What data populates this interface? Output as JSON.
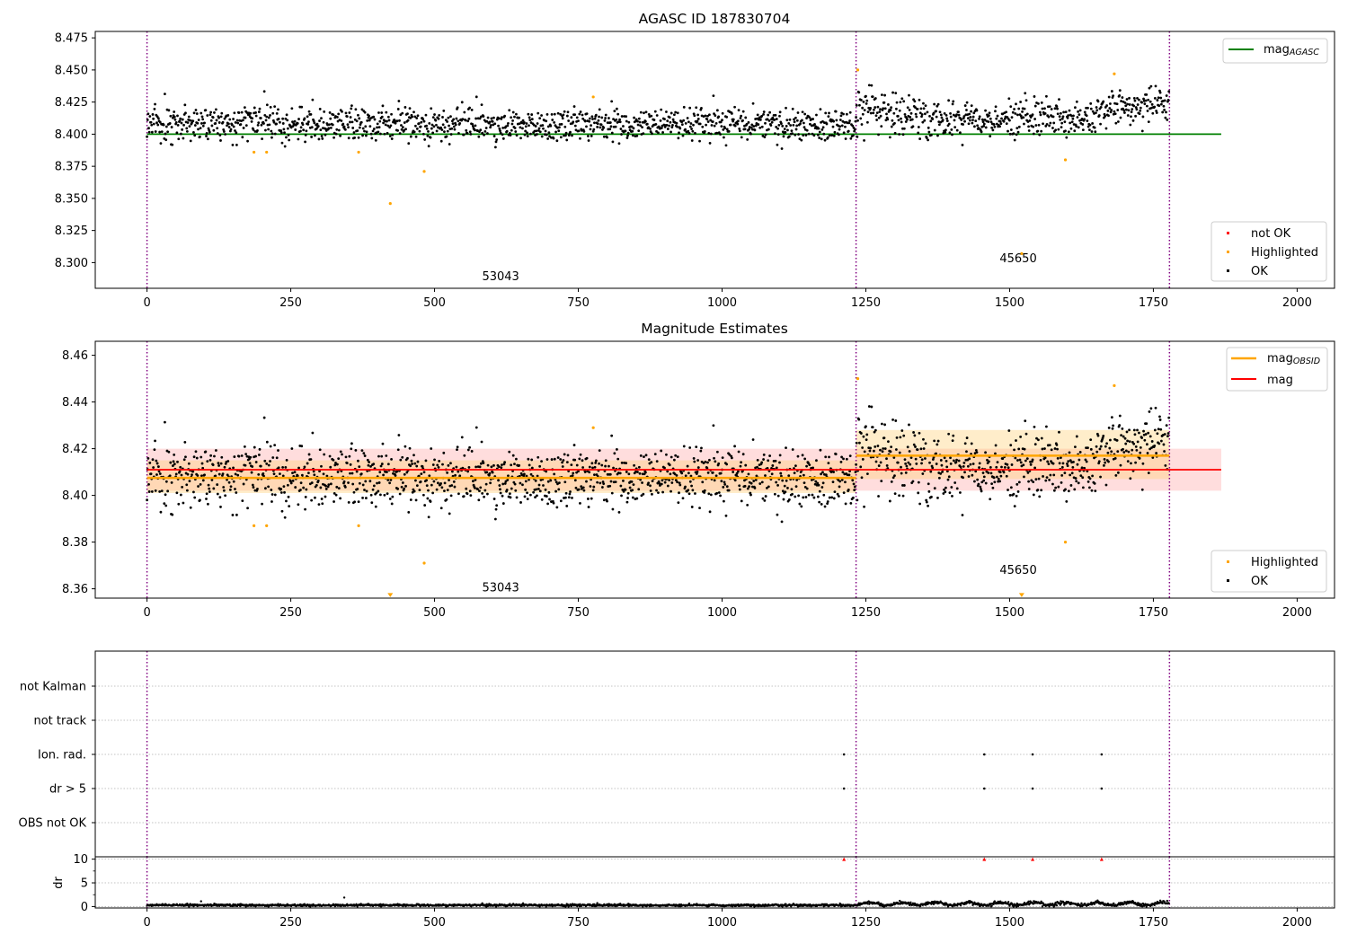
{
  "chart_data": [
    {
      "type": "scatter",
      "title": "AGASC ID 187830704",
      "xlabel": "",
      "ylabel": "",
      "xlim": [
        -90,
        2065
      ],
      "ylim": [
        8.28,
        8.48
      ],
      "xticks": [
        0,
        250,
        500,
        750,
        1000,
        1250,
        1500,
        1750,
        2000
      ],
      "yticks": [
        8.3,
        8.325,
        8.35,
        8.375,
        8.4,
        8.425,
        8.45,
        8.475
      ],
      "ytick_labels": [
        "8.300",
        "8.325",
        "8.350",
        "8.375",
        "8.400",
        "8.425",
        "8.450",
        "8.475"
      ],
      "obs_boundaries": [
        0,
        1233,
        1778
      ],
      "obs_labels": [
        {
          "text": "53043",
          "x": 615,
          "y": 8.289
        },
        {
          "text": "45650",
          "x": 1515,
          "y": 8.303
        }
      ],
      "reference_line": {
        "name": "mag_AGASC",
        "y": 8.4,
        "x": [
          0,
          1868
        ]
      },
      "obs_segments": [
        {
          "x_start": 0,
          "x_end": 1233,
          "mean": 8.408,
          "sd": 0.007
        },
        {
          "x_start": 1233,
          "x_end": 1778,
          "mean": 8.416,
          "sd": 0.01
        }
      ],
      "series": [
        {
          "name": "OK",
          "values_note": "~1780 samples, noise around obs means"
        },
        {
          "name": "Highlighted",
          "x": [
            186,
            208,
            368,
            423,
            482,
            776,
            1236,
            1521,
            1597,
            1682
          ],
          "y": [
            8.386,
            8.386,
            8.386,
            8.346,
            8.371,
            8.429,
            8.45,
            8.307,
            8.38,
            8.447
          ]
        }
      ],
      "legend_top": [
        "mag_AGASC"
      ],
      "legend_bottom": [
        "not OK",
        "Highlighted",
        "OK"
      ]
    },
    {
      "type": "scatter",
      "title": "Magnitude Estimates",
      "xlabel": "",
      "ylabel": "",
      "xlim": [
        -90,
        2065
      ],
      "ylim": [
        8.356,
        8.466
      ],
      "xticks": [
        0,
        250,
        500,
        750,
        1000,
        1250,
        1500,
        1750,
        2000
      ],
      "yticks": [
        8.36,
        8.38,
        8.4,
        8.42,
        8.44,
        8.46
      ],
      "ytick_labels": [
        "8.36",
        "8.38",
        "8.40",
        "8.42",
        "8.44",
        "8.46"
      ],
      "obs_boundaries": [
        0,
        1233,
        1778
      ],
      "obs_labels": [
        {
          "text": "53043",
          "x": 615,
          "y": 8.3605
        },
        {
          "text": "45650",
          "x": 1515,
          "y": 8.368
        }
      ],
      "mag_line": {
        "name": "mag",
        "y": 8.411,
        "band": [
          8.402,
          8.42
        ],
        "x": [
          0,
          1868
        ]
      },
      "mag_obsid": [
        {
          "x_start": 0,
          "x_end": 1233,
          "mean": 8.4075,
          "band": [
            8.401,
            8.415
          ]
        },
        {
          "x_start": 1233,
          "x_end": 1778,
          "mean": 8.417,
          "band": [
            8.407,
            8.428
          ]
        }
      ],
      "series": [
        {
          "name": "OK",
          "values_note": "same samples as panel 1"
        },
        {
          "name": "Highlighted",
          "x": [
            186,
            208,
            368,
            423,
            482,
            776,
            1236,
            1521,
            1597,
            1682
          ],
          "y": [
            8.387,
            8.387,
            8.387,
            8.357,
            8.371,
            8.429,
            8.45,
            8.357,
            8.38,
            8.447
          ]
        }
      ],
      "legend_top": [
        "mag_OBSID",
        "mag"
      ],
      "legend_bottom": [
        "Highlighted",
        "OK"
      ]
    },
    {
      "type": "scatter",
      "title": "",
      "xlim": [
        -90,
        2065
      ],
      "categories": [
        "not Kalman",
        "not track",
        "Ion. rad.",
        "dr > 5",
        "OBS not OK"
      ],
      "obs_boundaries": [
        0,
        1233,
        1778
      ],
      "flags": [
        {
          "category": "Ion. rad.",
          "x": [
            1212,
            1456,
            1540,
            1660
          ]
        },
        {
          "category": "dr > 5",
          "x": [
            1212,
            1456,
            1540,
            1660
          ]
        }
      ]
    },
    {
      "type": "scatter",
      "title": "",
      "xlabel": "",
      "ylabel": "dr",
      "xlim": [
        -90,
        2065
      ],
      "ylim": [
        -0.3,
        10.5
      ],
      "xticks": [
        0,
        250,
        500,
        750,
        1000,
        1250,
        1500,
        1750,
        2000
      ],
      "yticks": [
        0,
        5,
        10
      ],
      "ytick_labels": [
        "0",
        "5",
        "10"
      ],
      "obs_boundaries": [
        0,
        1233,
        1778
      ],
      "series": [
        {
          "name": "dr",
          "values_note": "mostly 0-1.5"
        },
        {
          "name": "dr > 5 (clipped)",
          "x": [
            1212,
            1456,
            1540,
            1660
          ],
          "y": [
            10,
            10,
            10,
            10
          ]
        }
      ]
    }
  ],
  "legend": {
    "mag_agasc_main": "mag",
    "mag_agasc_sub": "AGASC",
    "mag_obsid_main": "mag",
    "mag_obsid_sub": "OBSID",
    "mag": "mag",
    "not_ok": "not OK",
    "highlighted": "Highlighted",
    "ok": "OK"
  },
  "colors": {
    "ok": "#000000",
    "highlighted": "#ffa500",
    "not_ok": "#ff0000",
    "agasc_line": "#008000",
    "mag_line": "#ff0000",
    "mag_obsid_line": "#ffa500",
    "obs_boundary": "#800080"
  }
}
